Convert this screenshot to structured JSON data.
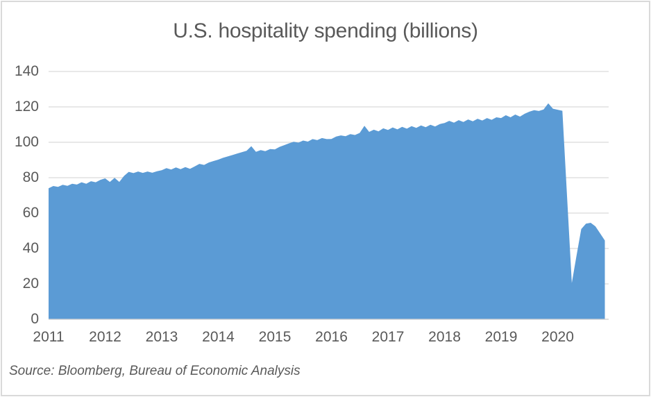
{
  "chart_data": {
    "type": "area",
    "title": "U.S. hospitality spending (billions)",
    "series_name": "U.S. hospitality spending",
    "frequency": "monthly",
    "x_range": {
      "start": "2011-01",
      "end": "2020-11"
    },
    "x_tick_labels": [
      "2011",
      "2012",
      "2013",
      "2014",
      "2015",
      "2016",
      "2017",
      "2018",
      "2019",
      "2020"
    ],
    "y_ticks": [
      0,
      20,
      40,
      60,
      80,
      100,
      120,
      140
    ],
    "ylim": [
      0,
      140
    ],
    "xlabel": "",
    "ylabel": "",
    "grid": true,
    "legend": "none",
    "area_color": "#5B9BD5",
    "values": [
      74.0,
      75.3,
      74.8,
      76.0,
      75.4,
      76.6,
      76.1,
      77.4,
      76.6,
      78.0,
      77.4,
      78.8,
      79.6,
      77.6,
      79.9,
      77.6,
      81.0,
      83.3,
      82.6,
      83.5,
      82.7,
      83.5,
      82.8,
      83.6,
      84.2,
      85.4,
      84.6,
      85.8,
      84.8,
      86.0,
      85.0,
      86.4,
      87.8,
      87.2,
      88.6,
      89.4,
      90.2,
      91.2,
      92.0,
      92.8,
      93.6,
      94.4,
      95.2,
      97.8,
      94.6,
      95.6,
      95.0,
      96.2,
      96.0,
      97.4,
      98.4,
      99.4,
      100.3,
      99.8,
      101.0,
      100.4,
      101.8,
      101.2,
      102.4,
      101.8,
      101.9,
      103.2,
      103.9,
      103.4,
      104.6,
      104.1,
      105.3,
      109.3,
      105.9,
      107.1,
      106.2,
      107.9,
      107.0,
      108.4,
      107.3,
      108.7,
      107.7,
      109.1,
      108.1,
      109.5,
      108.5,
      109.9,
      108.9,
      110.3,
      110.9,
      112.1,
      111.1,
      112.5,
      111.5,
      112.9,
      111.9,
      113.3,
      112.3,
      113.7,
      112.7,
      114.1,
      113.7,
      115.3,
      114.1,
      115.7,
      114.5,
      116.1,
      117.3,
      118.1,
      117.7,
      118.5,
      122.0,
      119.0,
      118.4,
      117.8,
      69.0,
      20.5,
      36.0,
      51.0,
      54.0,
      54.5,
      52.5,
      48.5,
      44.5
    ]
  },
  "source": {
    "text": "Source: Bloomberg, Bureau of Economic Analysis"
  },
  "colors": {
    "background": "#FFFFFF",
    "area": "#5B9BD5",
    "gridline": "#D9D9D9",
    "axis_line": "#D0D0D0",
    "text": "#595959",
    "border": "#D9D9D9"
  }
}
